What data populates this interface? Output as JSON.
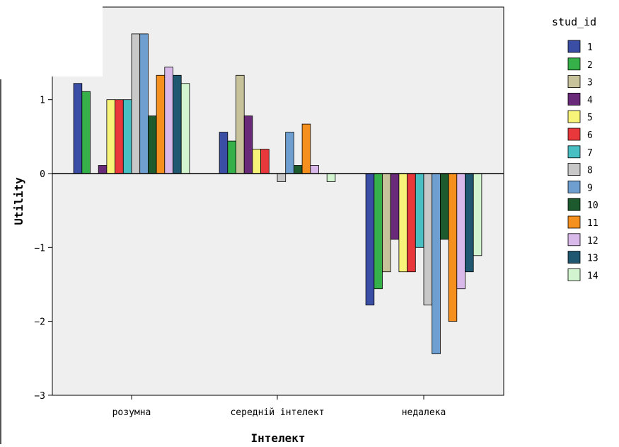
{
  "chart_data": {
    "type": "bar",
    "xlabel": "Інтелект",
    "ylabel": "Utility",
    "ylim": [
      -3,
      2.2
    ],
    "yticks": [
      1,
      0,
      -1,
      -2,
      -3
    ],
    "grid": false,
    "legend_position": "right",
    "legend_title": "stud_id",
    "categories": [
      "розумна",
      "середній інтелект",
      "недалека"
    ],
    "series": [
      {
        "name": "1",
        "color": "#3b4ea6",
        "values": [
          1.22,
          0.56,
          -1.78
        ]
      },
      {
        "name": "2",
        "color": "#36b049",
        "values": [
          1.11,
          0.44,
          -1.56
        ]
      },
      {
        "name": "3",
        "color": "#c8c29a",
        "values": [
          0.0,
          1.33,
          -1.33
        ]
      },
      {
        "name": "4",
        "color": "#6a2a7a",
        "values": [
          0.11,
          0.78,
          -0.89
        ]
      },
      {
        "name": "5",
        "color": "#f8f47a",
        "values": [
          1.0,
          0.33,
          -1.33
        ]
      },
      {
        "name": "6",
        "color": "#e8383c",
        "values": [
          1.0,
          0.33,
          -1.33
        ]
      },
      {
        "name": "7",
        "color": "#47bfc3",
        "values": [
          1.0,
          0.0,
          -1.0
        ]
      },
      {
        "name": "8",
        "color": "#c8c8c8",
        "values": [
          1.89,
          -0.11,
          -1.78
        ]
      },
      {
        "name": "9",
        "color": "#6e9fd0",
        "values": [
          1.89,
          0.56,
          -2.44
        ]
      },
      {
        "name": "10",
        "color": "#1d5a2d",
        "values": [
          0.78,
          0.11,
          -0.89
        ]
      },
      {
        "name": "11",
        "color": "#f58f1e",
        "values": [
          1.33,
          0.67,
          -2.0
        ]
      },
      {
        "name": "12",
        "color": "#d9b8ea",
        "values": [
          1.44,
          0.11,
          -1.56
        ]
      },
      {
        "name": "13",
        "color": "#1f5870",
        "values": [
          1.33,
          0.0,
          -1.33
        ]
      },
      {
        "name": "14",
        "color": "#d2f5cf",
        "values": [
          1.22,
          -0.11,
          -1.11
        ]
      }
    ]
  }
}
